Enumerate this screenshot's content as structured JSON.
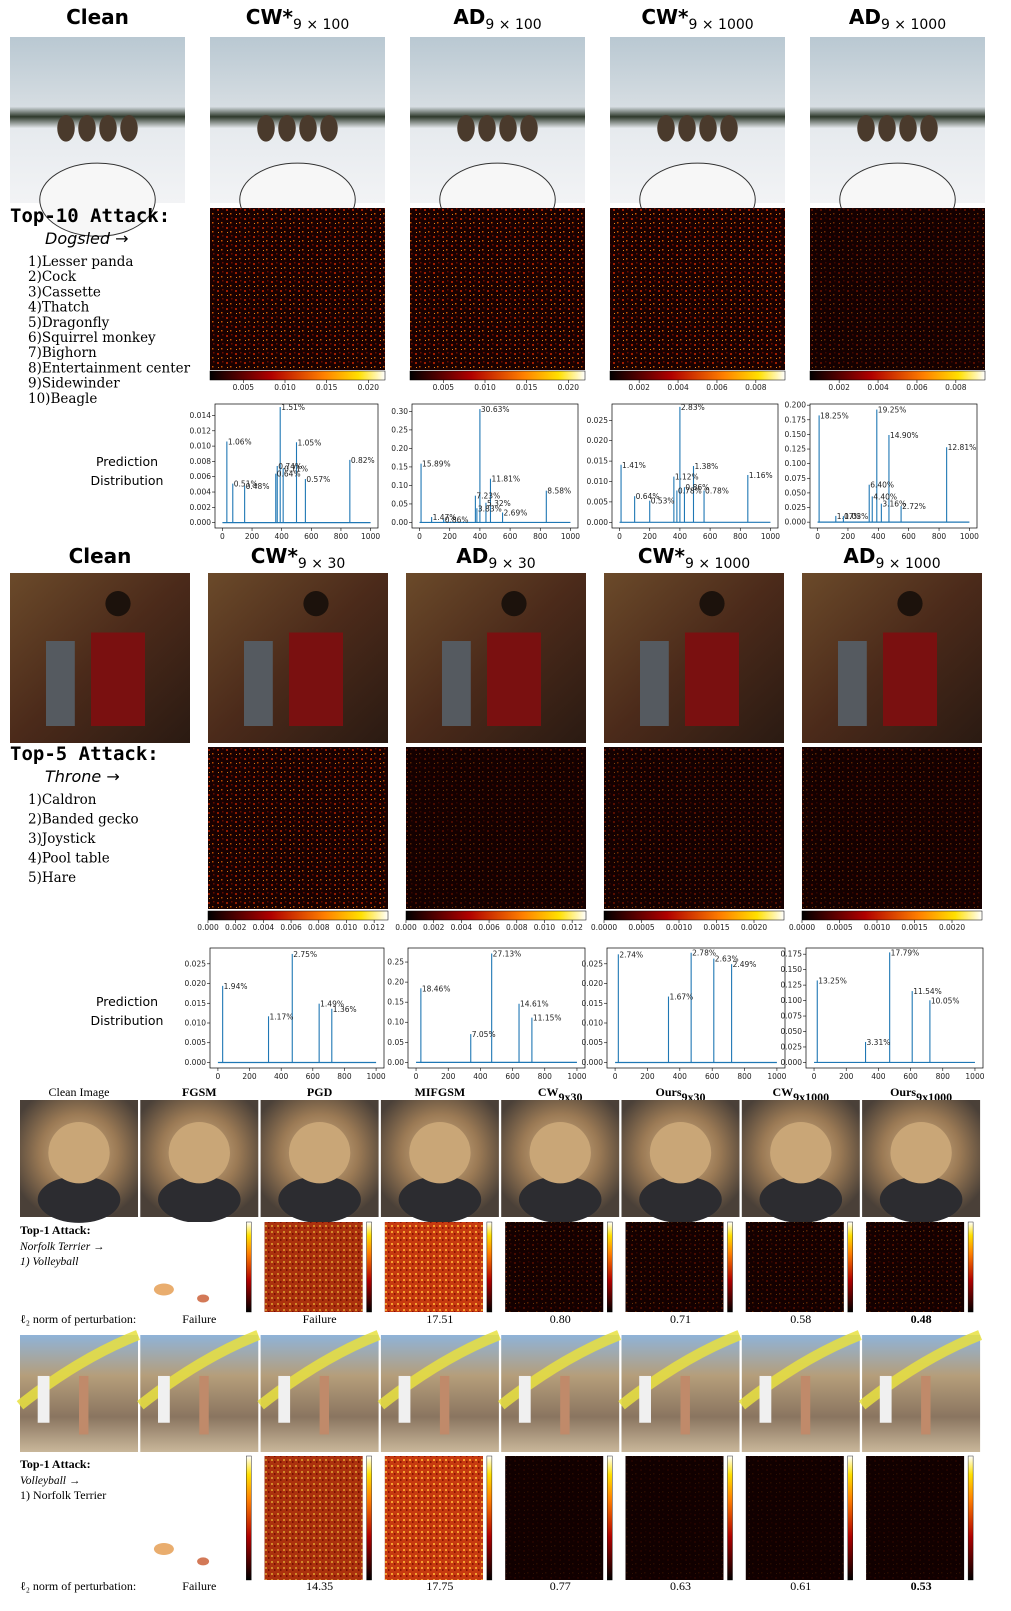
{
  "sections": [
    {
      "headers": [
        {
          "text": "Clean"
        },
        {
          "text": "CW*",
          "sub": "9 × 100"
        },
        {
          "text": "AD",
          "sub": "9 × 100"
        },
        {
          "text": "CW*",
          "sub": "9 × 1000"
        },
        {
          "text": "AD",
          "sub": "9 × 1000"
        }
      ],
      "attack": {
        "title": "Top-10 Attack:",
        "target": "Dogsled →",
        "classes": [
          "1)Lesser panda",
          "2)Cock",
          "3)Cassette",
          "4)Thatch",
          "5)Dragonfly",
          "6)Squirrel monkey",
          "7)Bighorn",
          "8)Entertainment center",
          "9)Sidewinder",
          "10)Beagle"
        ]
      },
      "colorbars": [
        {
          "lim": [
            0.001,
            0.022
          ],
          "ticks": [
            0.005,
            {
              "value": 0.01,
              "label": "0.010"
            },
            0.015,
            {
              "value": 0.02,
              "label": "0.020"
            }
          ]
        },
        {
          "lim": [
            0.001,
            0.022
          ],
          "ticks": [
            0.005,
            {
              "value": 0.01,
              "label": "0.010"
            },
            0.015,
            {
              "value": 0.02,
              "label": "0.020"
            }
          ]
        },
        {
          "lim": [
            0.0005,
            0.0095
          ],
          "ticks": [
            0.002,
            0.004,
            0.006,
            0.008
          ]
        },
        {
          "lim": [
            0.0005,
            0.0095
          ],
          "ticks": [
            0.002,
            0.004,
            0.006,
            0.008
          ]
        }
      ],
      "distribution_label": [
        "Prediction",
        "Distribution"
      ],
      "plots": [
        {
          "xlim": [
            -50,
            1050
          ],
          "xticks": [
            0,
            200,
            400,
            600,
            800,
            1000
          ],
          "ylim": [
            -0.0007,
            0.0155
          ],
          "yticks": [
            {
              "value": 0,
              "label": "0.000"
            },
            0.002,
            0.004,
            0.006,
            0.008,
            {
              "value": 0.01,
              "label": "0.010"
            },
            0.012,
            0.014
          ],
          "peaks": [
            {
              "x": 390,
              "value": 0.0151,
              "label": "1.51%"
            },
            {
              "x": 30,
              "value": 0.0106,
              "label": "1.06%"
            },
            {
              "x": 500,
              "value": 0.0105,
              "label": "1.05%"
            },
            {
              "x": 860,
              "value": 0.0082,
              "label": "0.82%"
            },
            {
              "x": 370,
              "value": 0.0074,
              "label": "0.74%"
            },
            {
              "x": 410,
              "value": 0.0071,
              "label": "0.71%"
            },
            {
              "x": 360,
              "value": 0.0064,
              "label": "0.64%"
            },
            {
              "x": 560,
              "value": 0.0057,
              "label": "0.57%"
            },
            {
              "x": 70,
              "value": 0.0051,
              "label": "0.51%"
            },
            {
              "x": 150,
              "value": 0.0048,
              "label": "0.48%"
            }
          ]
        },
        {
          "xlim": [
            -50,
            1050
          ],
          "xticks": [
            0,
            200,
            400,
            600,
            800,
            1000
          ],
          "ylim": [
            -0.015,
            0.32
          ],
          "yticks": [
            {
              "value": 0,
              "label": "0.00"
            },
            0.05,
            {
              "value": 0.1,
              "label": "0.10"
            },
            0.15,
            {
              "value": 0.2,
              "label": "0.20"
            },
            0.25,
            {
              "value": 0.3,
              "label": "0.30"
            }
          ],
          "peaks": [
            {
              "x": 400,
              "value": 0.3063,
              "label": "30.63%"
            },
            {
              "x": 10,
              "value": 0.1589,
              "label": "15.89%"
            },
            {
              "x": 470,
              "value": 0.1181,
              "label": "11.81%"
            },
            {
              "x": 840,
              "value": 0.0858,
              "label": "8.58%"
            },
            {
              "x": 370,
              "value": 0.0723,
              "label": "7.23%"
            },
            {
              "x": 440,
              "value": 0.0532,
              "label": "5.32%"
            },
            {
              "x": 380,
              "value": 0.0383,
              "label": "3.83%"
            },
            {
              "x": 550,
              "value": 0.0269,
              "label": "2.69%"
            },
            {
              "x": 80,
              "value": 0.0147,
              "label": "1.47%"
            },
            {
              "x": 160,
              "value": 0.0086,
              "label": "0.86%"
            }
          ]
        },
        {
          "xlim": [
            -50,
            1050
          ],
          "xticks": [
            0,
            200,
            400,
            600,
            800,
            1000
          ],
          "ylim": [
            -0.0014,
            0.029
          ],
          "yticks": [
            {
              "value": 0,
              "label": "0.000"
            },
            0.005,
            {
              "value": 0.01,
              "label": "0.010"
            },
            0.015,
            {
              "value": 0.02,
              "label": "0.020"
            },
            0.025
          ],
          "peaks": [
            {
              "x": 400,
              "value": 0.0283,
              "label": "2.83%"
            },
            {
              "x": 10,
              "value": 0.0141,
              "label": "1.41%"
            },
            {
              "x": 490,
              "value": 0.0138,
              "label": "1.38%"
            },
            {
              "x": 850,
              "value": 0.0116,
              "label": "1.16%"
            },
            {
              "x": 360,
              "value": 0.0112,
              "label": "1.12%"
            },
            {
              "x": 430,
              "value": 0.0086,
              "label": "0.86%"
            },
            {
              "x": 380,
              "value": 0.0078,
              "label": "0.78%"
            },
            {
              "x": 560,
              "value": 0.0078,
              "label": "0.78%"
            },
            {
              "x": 100,
              "value": 0.0064,
              "label": "0.64%"
            },
            {
              "x": 200,
              "value": 0.0053,
              "label": "0.53%"
            }
          ]
        },
        {
          "xlim": [
            -50,
            1050
          ],
          "xticks": [
            0,
            200,
            400,
            600,
            800,
            1000
          ],
          "ylim": [
            -0.01,
            0.202
          ],
          "yticks": [
            {
              "value": 0,
              "label": "0.000"
            },
            0.025,
            {
              "value": 0.05,
              "label": "0.050"
            },
            0.075,
            {
              "value": 0.1,
              "label": "0.100"
            },
            0.125,
            {
              "value": 0.15,
              "label": "0.150"
            },
            0.175,
            {
              "value": 0.2,
              "label": "0.200"
            }
          ],
          "peaks": [
            {
              "x": 390,
              "value": 0.1925,
              "label": "19.25%"
            },
            {
              "x": 10,
              "value": 0.1825,
              "label": "18.25%"
            },
            {
              "x": 470,
              "value": 0.149,
              "label": "14.90%"
            },
            {
              "x": 850,
              "value": 0.1281,
              "label": "12.81%"
            },
            {
              "x": 340,
              "value": 0.064,
              "label": "6.40%"
            },
            {
              "x": 360,
              "value": 0.044,
              "label": "4.40%"
            },
            {
              "x": 420,
              "value": 0.0316,
              "label": "3.16%"
            },
            {
              "x": 550,
              "value": 0.0272,
              "label": "2.72%"
            },
            {
              "x": 120,
              "value": 0.0107,
              "label": "1.07%"
            },
            {
              "x": 170,
              "value": 0.0103,
              "label": "1.03%"
            }
          ]
        }
      ]
    },
    {
      "headers": [
        {
          "text": "Clean"
        },
        {
          "text": "CW*",
          "sub": "9 × 30"
        },
        {
          "text": "AD",
          "sub": "9 × 30"
        },
        {
          "text": "CW*",
          "sub": "9 × 1000"
        },
        {
          "text": "AD",
          "sub": "9 × 1000"
        }
      ],
      "attack": {
        "title": "Top-5 Attack:",
        "target": "Throne →",
        "classes": [
          "1)Caldron",
          "2)Banded gecko",
          "3)Joystick",
          "4)Pool table",
          "5)Hare"
        ]
      },
      "colorbars": [
        {
          "lim": [
            0,
            0.013
          ],
          "ticks": [
            {
              "value": 0,
              "label": "0.000"
            },
            0.002,
            0.004,
            0.006,
            0.008,
            {
              "value": 0.01,
              "label": "0.010"
            },
            0.012
          ]
        },
        {
          "lim": [
            0,
            0.013
          ],
          "ticks": [
            {
              "value": 0,
              "label": "0.000"
            },
            0.002,
            0.004,
            0.006,
            0.008,
            {
              "value": 0.01,
              "label": "0.010"
            },
            0.012
          ]
        },
        {
          "lim": [
            0,
            0.0024
          ],
          "ticks": [
            {
              "value": 0,
              "label": "0.0000"
            },
            0.0005,
            {
              "value": 0.001,
              "label": "0.0010"
            },
            0.0015,
            {
              "value": 0.002,
              "label": "0.0020"
            }
          ]
        },
        {
          "lim": [
            0,
            0.0024
          ],
          "ticks": [
            {
              "value": 0,
              "label": "0.0000"
            },
            0.0005,
            {
              "value": 0.001,
              "label": "0.0010"
            },
            0.0015,
            {
              "value": 0.002,
              "label": "0.0020"
            }
          ]
        }
      ],
      "distribution_label": [
        "Prediction",
        "Distribution"
      ],
      "plots": [
        {
          "xlim": [
            -50,
            1050
          ],
          "xticks": [
            0,
            200,
            400,
            600,
            800,
            1000
          ],
          "ylim": [
            -0.0014,
            0.029
          ],
          "yticks": [
            {
              "value": 0,
              "label": "0.000"
            },
            0.005,
            {
              "value": 0.01,
              "label": "0.010"
            },
            0.015,
            {
              "value": 0.02,
              "label": "0.020"
            },
            0.025
          ],
          "peaks": [
            {
              "x": 470,
              "value": 0.0275,
              "label": "2.75%"
            },
            {
              "x": 30,
              "value": 0.0194,
              "label": "1.94%"
            },
            {
              "x": 640,
              "value": 0.0149,
              "label": "1.49%"
            },
            {
              "x": 720,
              "value": 0.0136,
              "label": "1.36%"
            },
            {
              "x": 320,
              "value": 0.0117,
              "label": "1.17%"
            }
          ]
        },
        {
          "xlim": [
            -50,
            1050
          ],
          "xticks": [
            0,
            200,
            400,
            600,
            800,
            1000
          ],
          "ylim": [
            -0.014,
            0.285
          ],
          "yticks": [
            {
              "value": 0,
              "label": "0.00"
            },
            0.05,
            {
              "value": 0.1,
              "label": "0.10"
            },
            0.15,
            {
              "value": 0.2,
              "label": "0.20"
            },
            0.25
          ],
          "peaks": [
            {
              "x": 470,
              "value": 0.2713,
              "label": "27.13%"
            },
            {
              "x": 30,
              "value": 0.1846,
              "label": "18.46%"
            },
            {
              "x": 640,
              "value": 0.1461,
              "label": "14.61%"
            },
            {
              "x": 720,
              "value": 0.1115,
              "label": "11.15%"
            },
            {
              "x": 340,
              "value": 0.0705,
              "label": "7.05%"
            }
          ]
        },
        {
          "xlim": [
            -50,
            1050
          ],
          "xticks": [
            0,
            200,
            400,
            600,
            800,
            1000
          ],
          "ylim": [
            -0.0014,
            0.029
          ],
          "yticks": [
            {
              "value": 0,
              "label": "0.000"
            },
            0.005,
            {
              "value": 0.01,
              "label": "0.010"
            },
            0.015,
            {
              "value": 0.02,
              "label": "0.020"
            },
            0.025
          ],
          "peaks": [
            {
              "x": 470,
              "value": 0.0278,
              "label": "2.78%"
            },
            {
              "x": 20,
              "value": 0.0274,
              "label": "2.74%"
            },
            {
              "x": 610,
              "value": 0.0263,
              "label": "2.63%"
            },
            {
              "x": 720,
              "value": 0.0249,
              "label": "2.49%"
            },
            {
              "x": 330,
              "value": 0.0167,
              "label": "1.67%"
            }
          ]
        },
        {
          "xlim": [
            -50,
            1050
          ],
          "xticks": [
            0,
            200,
            400,
            600,
            800,
            1000
          ],
          "ylim": [
            -0.009,
            0.185
          ],
          "yticks": [
            {
              "value": 0,
              "label": "0.000"
            },
            0.025,
            {
              "value": 0.05,
              "label": "0.050"
            },
            0.075,
            {
              "value": 0.1,
              "label": "0.100"
            },
            0.125,
            {
              "value": 0.15,
              "label": "0.150"
            },
            0.175
          ],
          "peaks": [
            {
              "x": 470,
              "value": 0.1779,
              "label": "17.79%"
            },
            {
              "x": 20,
              "value": 0.1325,
              "label": "13.25%"
            },
            {
              "x": 610,
              "value": 0.1154,
              "label": "11.54%"
            },
            {
              "x": 720,
              "value": 0.1005,
              "label": "10.05%"
            },
            {
              "x": 320,
              "value": 0.0331,
              "label": "3.31%"
            }
          ]
        }
      ]
    }
  ],
  "comparison": {
    "headers": [
      {
        "text": "Clean Image"
      },
      {
        "text": "FGSM"
      },
      {
        "text": "PGD"
      },
      {
        "text": "MIFGSM"
      },
      {
        "text": "CW",
        "sub": "9x30"
      },
      {
        "text": "Ours",
        "sub": "9x30"
      },
      {
        "text": "CW",
        "sub": "9x1000"
      },
      {
        "text": "Ours",
        "sub": "9x1000"
      }
    ],
    "norm_label": "ℓ₂ norm of perturbation:",
    "rows": [
      {
        "attack_title": "Top-1 Attack:",
        "target": "Norfolk Terrier →",
        "prediction": "1) Volleyball",
        "norms": [
          "Failure",
          "Failure",
          "17.51",
          "0.80",
          "0.71",
          "0.58",
          "0.48"
        ]
      },
      {
        "attack_title": "Top-1 Attack:",
        "target": "Volleyball →",
        "prediction": "1) Norfolk Terrier",
        "norms": [
          "Failure",
          "14.35",
          "17.75",
          "0.77",
          "0.63",
          "0.61",
          "0.53"
        ]
      }
    ]
  }
}
